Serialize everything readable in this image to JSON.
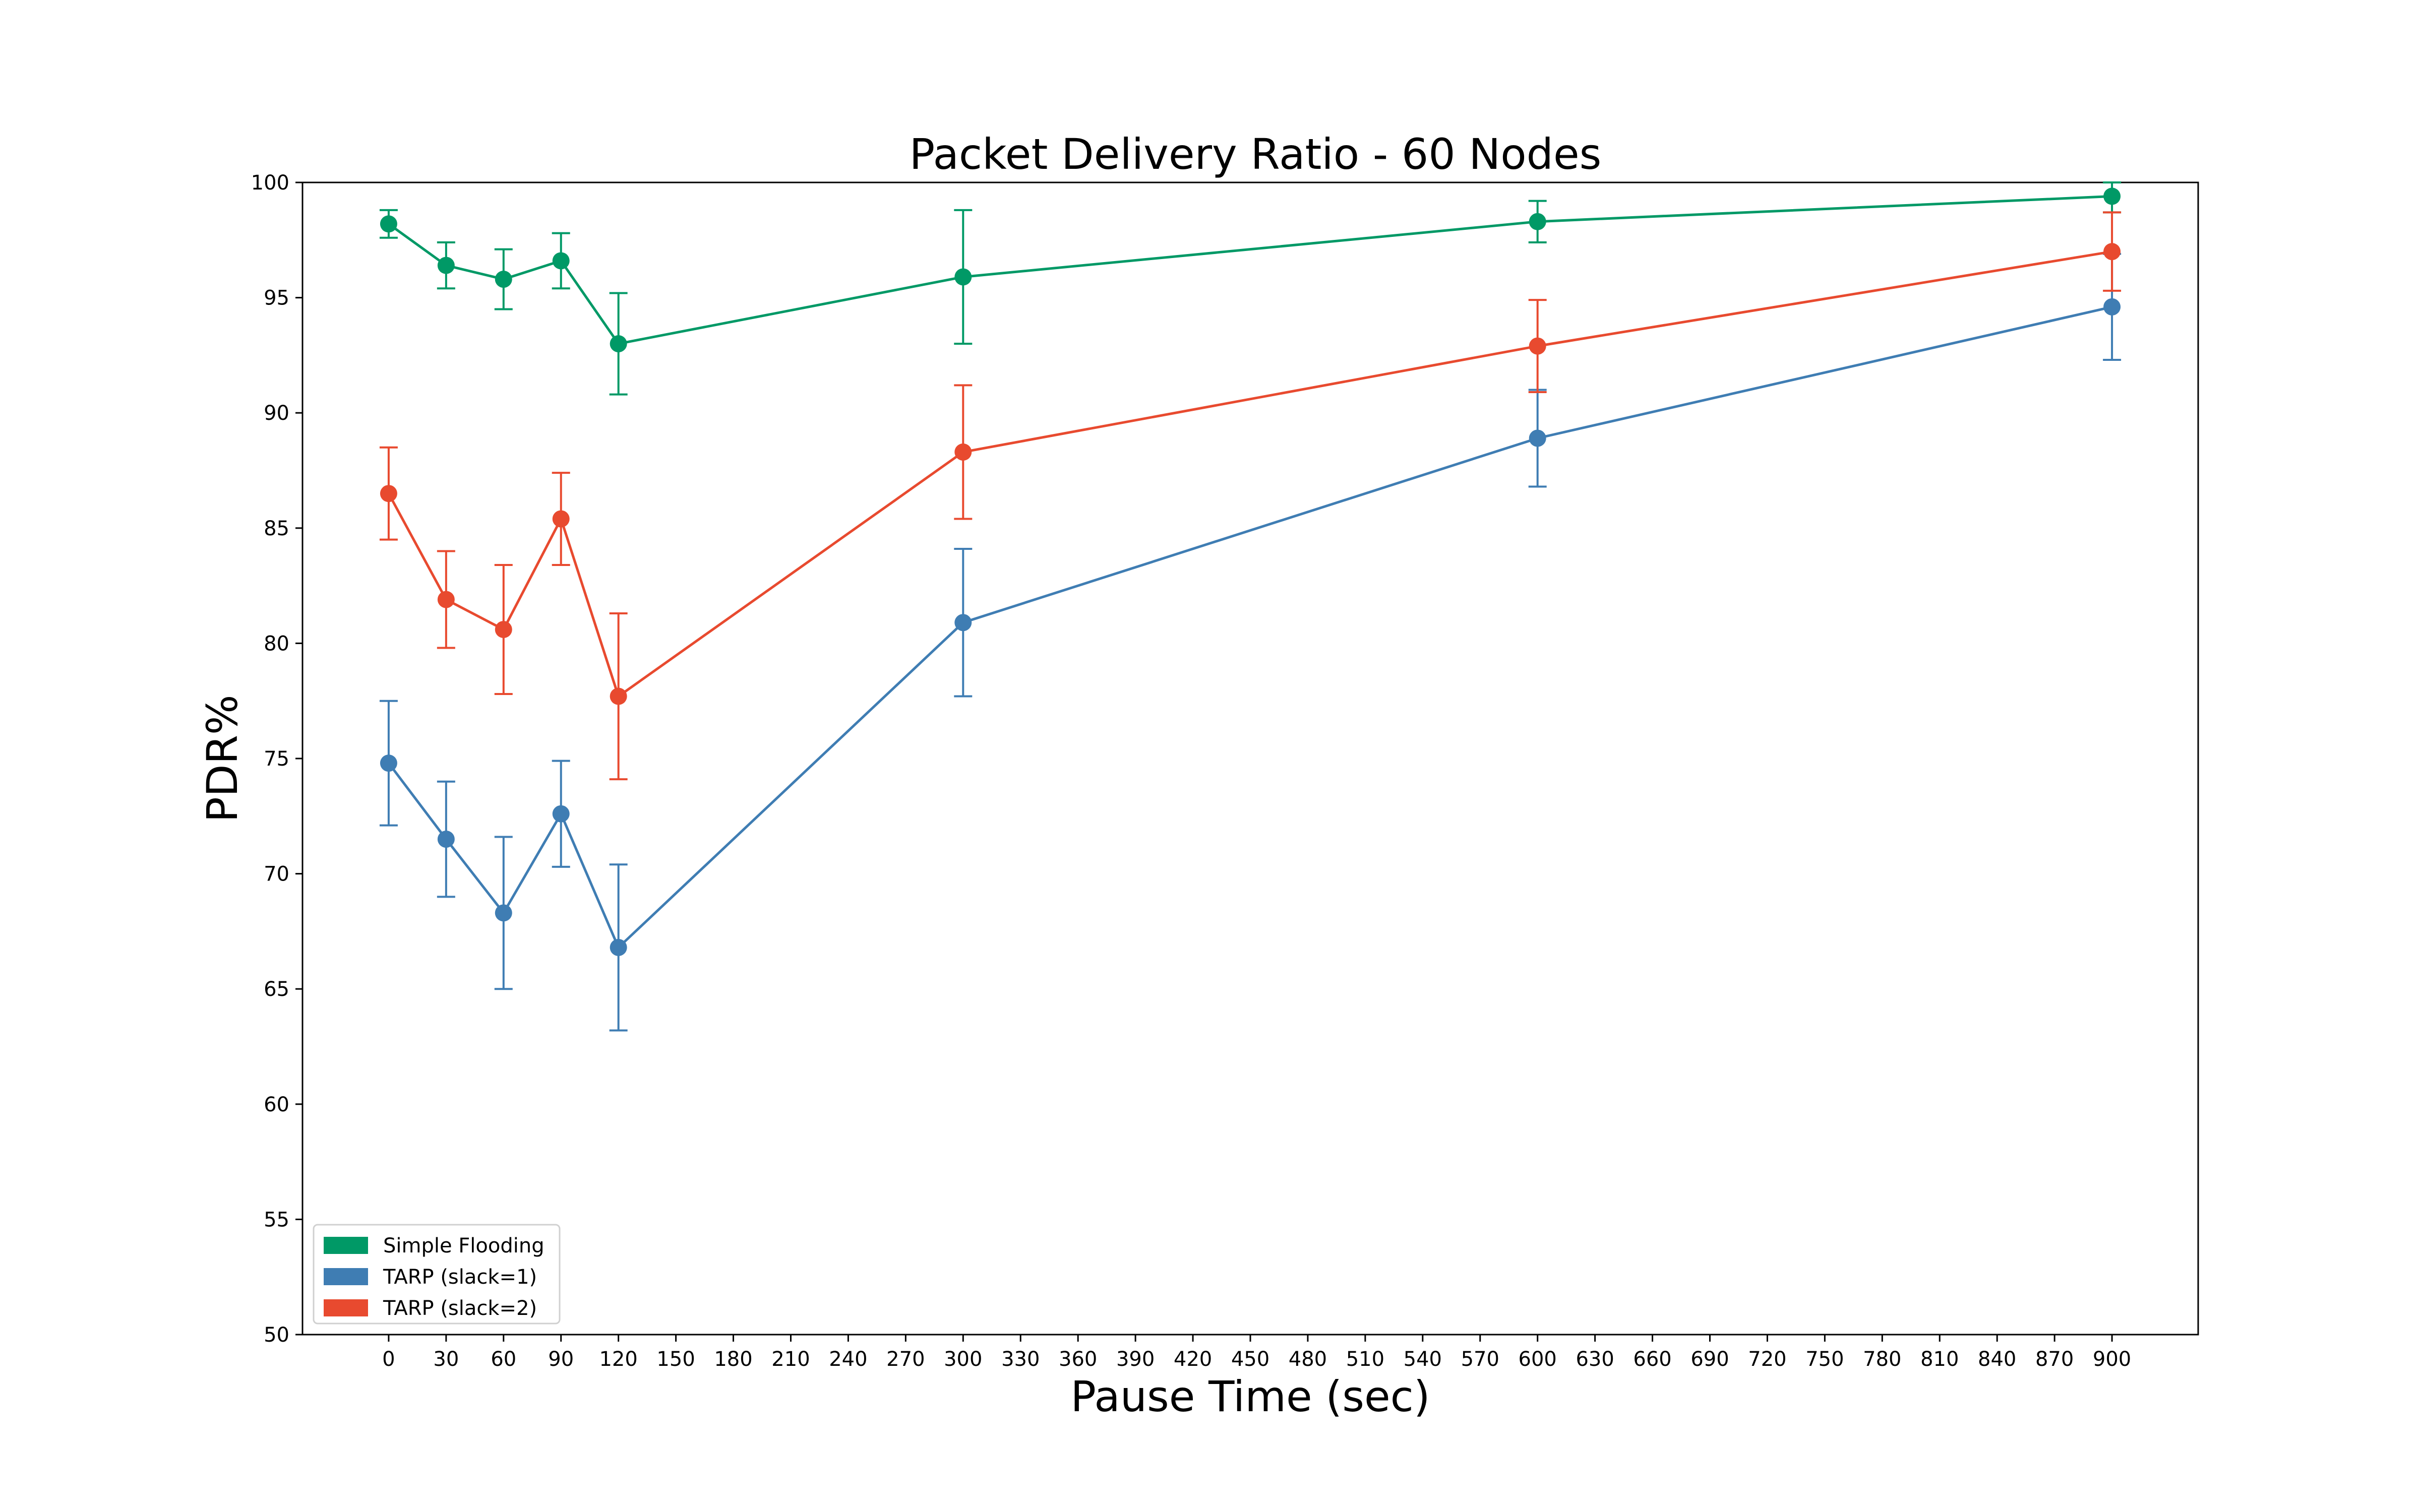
{
  "chart_data": {
    "type": "line",
    "title": "Packet Delivery Ratio - 60 Nodes",
    "xlabel": "Pause Time (sec)",
    "ylabel": "PDR%",
    "xlim": [
      -45,
      945
    ],
    "ylim": [
      50,
      100
    ],
    "xticks": [
      0,
      30,
      60,
      90,
      120,
      150,
      180,
      210,
      240,
      270,
      300,
      330,
      360,
      390,
      420,
      450,
      480,
      510,
      540,
      570,
      600,
      630,
      660,
      690,
      720,
      750,
      780,
      810,
      840,
      870,
      900
    ],
    "yticks": [
      50,
      55,
      60,
      65,
      70,
      75,
      80,
      85,
      90,
      95,
      100
    ],
    "x": [
      0,
      30,
      60,
      90,
      120,
      300,
      600,
      900
    ],
    "legend_position": "lower left",
    "grid": false,
    "series": [
      {
        "name": "Simple Flooding",
        "color": "#009966",
        "values": [
          98.2,
          96.4,
          95.8,
          96.6,
          93.0,
          95.9,
          98.3,
          99.4
        ],
        "error": [
          0.6,
          1.0,
          1.3,
          1.2,
          2.2,
          2.9,
          0.9,
          0.7
        ]
      },
      {
        "name": "TARP (slack=1)",
        "color": "#3f7db3",
        "values": [
          74.8,
          71.5,
          68.3,
          72.6,
          66.8,
          80.9,
          88.9,
          94.6
        ],
        "error": [
          2.7,
          2.5,
          3.3,
          2.3,
          3.6,
          3.2,
          2.1,
          2.3
        ]
      },
      {
        "name": "TARP (slack=2)",
        "color": "#e84a2f",
        "values": [
          86.5,
          81.9,
          80.6,
          85.4,
          77.7,
          88.3,
          92.9,
          97.0
        ],
        "error": [
          2.0,
          2.1,
          2.8,
          2.0,
          3.6,
          2.9,
          2.0,
          1.7
        ]
      }
    ]
  }
}
